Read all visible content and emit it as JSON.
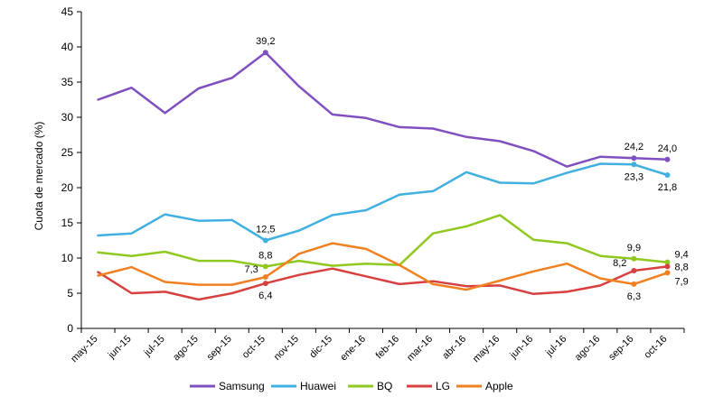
{
  "chart_data": {
    "type": "line",
    "ylabel": "Cuota de mercado (%)",
    "xlabel": "",
    "ylim": [
      0,
      45
    ],
    "yticks": [
      0,
      5,
      10,
      15,
      20,
      25,
      30,
      35,
      40,
      45
    ],
    "grid": false,
    "legend_position": "bottom",
    "categories": [
      "may-15",
      "jun-15",
      "jul-15",
      "ago-15",
      "sep-15",
      "oct-15",
      "nov-15",
      "dic-15",
      "ene-16",
      "feb-16",
      "mar-16",
      "abr-16",
      "may-16",
      "jun-16",
      "jul-16",
      "ago-16",
      "sep-16",
      "oct-16"
    ],
    "series": [
      {
        "name": "Samsung",
        "color": "#8050c0",
        "values": [
          32.5,
          34.2,
          30.6,
          34.1,
          35.6,
          39.2,
          34.4,
          30.4,
          29.9,
          28.6,
          28.4,
          27.2,
          26.6,
          25.2,
          23.0,
          24.4,
          24.2,
          24.0
        ]
      },
      {
        "name": "Huawei",
        "color": "#40b0e0",
        "values": [
          13.2,
          13.5,
          16.2,
          15.3,
          15.4,
          12.5,
          13.9,
          16.1,
          16.8,
          19.0,
          19.5,
          22.2,
          20.7,
          20.6,
          22.1,
          23.4,
          23.3,
          21.8
        ]
      },
      {
        "name": "BQ",
        "color": "#90c820",
        "values": [
          10.8,
          10.3,
          10.9,
          9.6,
          9.6,
          8.8,
          9.6,
          8.9,
          9.2,
          9.0,
          13.5,
          14.5,
          16.1,
          12.6,
          12.1,
          10.3,
          9.9,
          9.4
        ]
      },
      {
        "name": "LG",
        "color": "#d84040",
        "values": [
          8.0,
          5.0,
          5.2,
          4.1,
          5.0,
          6.4,
          7.6,
          8.5,
          7.4,
          6.3,
          6.7,
          6.0,
          6.1,
          4.9,
          5.2,
          6.1,
          8.2,
          8.8
        ]
      },
      {
        "name": "Apple",
        "color": "#f08020",
        "values": [
          7.5,
          8.7,
          6.6,
          6.2,
          6.2,
          7.3,
          10.6,
          12.1,
          11.3,
          9.0,
          6.3,
          5.5,
          6.8,
          8.1,
          9.2,
          7.1,
          6.3,
          7.9
        ]
      }
    ],
    "annotations": [
      {
        "series": "Samsung",
        "index": 5,
        "text": "39,2",
        "place": "above"
      },
      {
        "series": "Samsung",
        "index": 16,
        "text": "24,2",
        "place": "above"
      },
      {
        "series": "Samsung",
        "index": 17,
        "text": "24,0",
        "place": "above"
      },
      {
        "series": "Huawei",
        "index": 5,
        "text": "12,5",
        "place": "above"
      },
      {
        "series": "Huawei",
        "index": 16,
        "text": "23,3",
        "place": "below"
      },
      {
        "series": "Huawei",
        "index": 17,
        "text": "21,8",
        "place": "below"
      },
      {
        "series": "BQ",
        "index": 5,
        "text": "8,8",
        "place": "above"
      },
      {
        "series": "BQ",
        "index": 16,
        "text": "9,9",
        "place": "above"
      },
      {
        "series": "BQ",
        "index": 17,
        "text": "9,4",
        "place": "right-above"
      },
      {
        "series": "LG",
        "index": 5,
        "text": "6,4",
        "place": "below"
      },
      {
        "series": "LG",
        "index": 16,
        "text": "8,2",
        "place": "left-above"
      },
      {
        "series": "LG",
        "index": 17,
        "text": "8,8",
        "place": "right"
      },
      {
        "series": "Apple",
        "index": 5,
        "text": "7,3",
        "place": "left-above"
      },
      {
        "series": "Apple",
        "index": 16,
        "text": "6,3",
        "place": "below"
      },
      {
        "series": "Apple",
        "index": 17,
        "text": "7,9",
        "place": "right-below"
      }
    ]
  }
}
